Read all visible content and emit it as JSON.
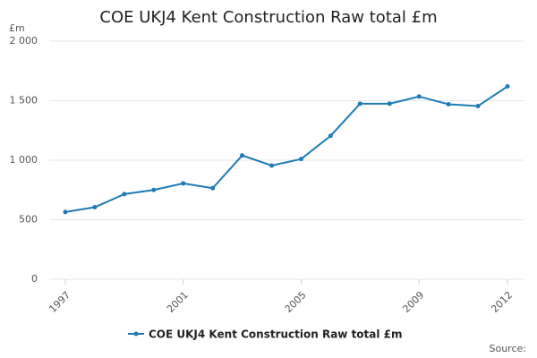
{
  "chart_data": {
    "type": "line",
    "title": "COE UKJ4 Kent Construction Raw total £m",
    "y_unit": "£m",
    "source": "Source:",
    "x": [
      1997,
      1998,
      1999,
      2000,
      2001,
      2002,
      2003,
      2004,
      2005,
      2006,
      2007,
      2008,
      2009,
      2010,
      2011,
      2012
    ],
    "xlim": [
      1997,
      2012
    ],
    "xticks": [
      1997,
      2001,
      2005,
      2009,
      2012
    ],
    "ylim": [
      0,
      2000
    ],
    "yticks": [
      0,
      500,
      {
        "value": 1000,
        "label": "1 000"
      },
      {
        "value": 1500,
        "label": "1 500"
      },
      {
        "value": 2000,
        "label": "2 000"
      }
    ],
    "grid": true,
    "series": [
      {
        "name": "COE UKJ4 Kent Construction Raw total £m",
        "color": "#1f7bb6",
        "values": [
          565,
          605,
          715,
          750,
          805,
          765,
          1040,
          955,
          1010,
          1205,
          1475,
          1475,
          1535,
          1470,
          1455,
          1620
        ]
      }
    ]
  }
}
